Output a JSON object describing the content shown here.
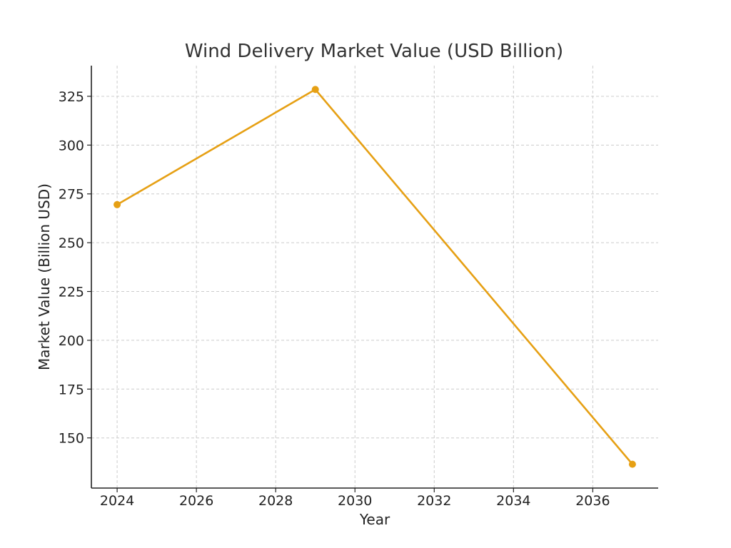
{
  "chart_data": {
    "type": "line",
    "title": "Wind Delivery Market Value (USD Billion)",
    "xlabel": "Year",
    "ylabel": "Market Value (Billion USD)",
    "x": [
      2024,
      2029,
      2037
    ],
    "series": [
      {
        "values": [
          269.5,
          328.5,
          136.5
        ],
        "color": "#e6a014"
      }
    ],
    "xlim": [
      2023.35,
      2037.65
    ],
    "ylim": [
      124.3,
      340.7
    ],
    "xticks": [
      2024,
      2026,
      2028,
      2030,
      2032,
      2034,
      2036
    ],
    "yticks": [
      150,
      175,
      200,
      225,
      250,
      275,
      300,
      325
    ],
    "grid": true,
    "marker": "circle"
  }
}
